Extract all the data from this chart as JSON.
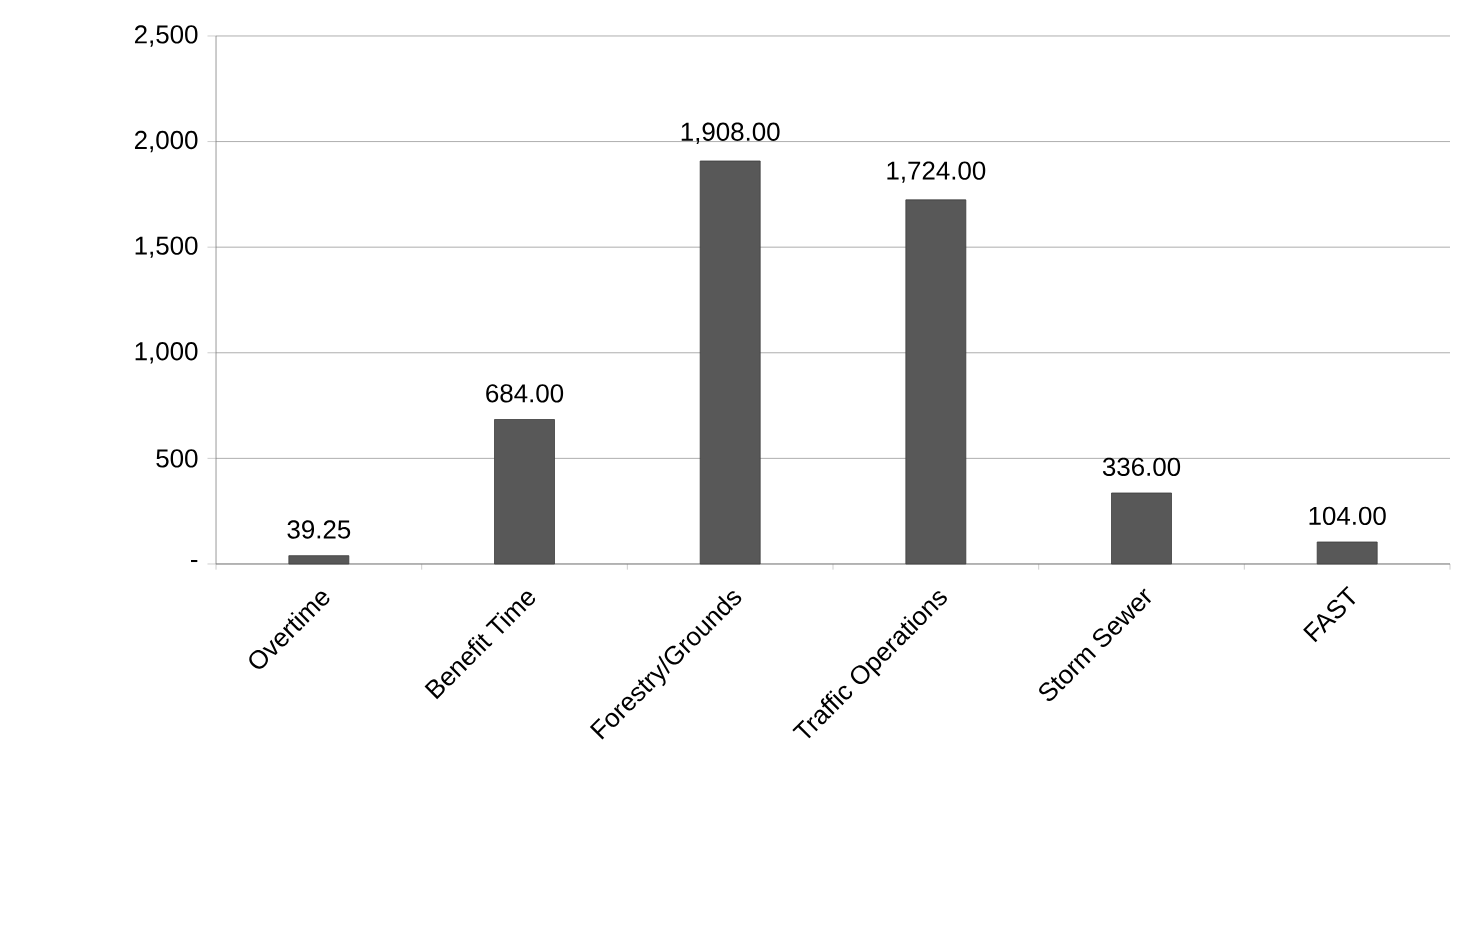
{
  "chart_data": {
    "type": "bar",
    "categories": [
      "Overtime",
      "Benefit Time",
      "Forestry/Grounds",
      "Traffic Operations",
      "Storm Sewer",
      "FAST"
    ],
    "values": [
      39.25,
      684,
      1908,
      1724,
      336,
      104
    ],
    "value_labels": [
      "39.25",
      "684.00",
      "1,908.00",
      "1,724.00",
      "336.00",
      "104.00"
    ],
    "color": "#585858",
    "ylim": [
      0,
      2500
    ],
    "yticks": [
      {
        "value": 0,
        "label": "-"
      },
      {
        "value": 500,
        "label": "500"
      },
      {
        "value": 1000,
        "label": "1,000"
      },
      {
        "value": 1500,
        "label": "1,500"
      },
      {
        "value": 2000,
        "label": "2,000"
      },
      {
        "value": 2500,
        "label": "2,500"
      }
    ],
    "grid": "y"
  }
}
